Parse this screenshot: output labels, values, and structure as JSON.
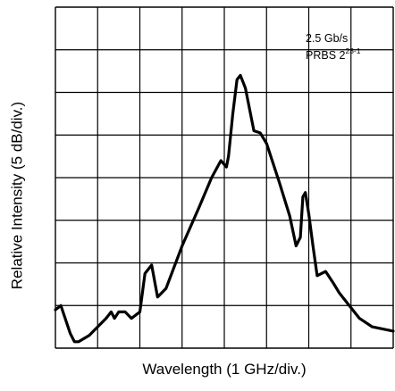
{
  "chart_data": {
    "type": "line",
    "title": "",
    "xlabel": "Wavelength (1 GHz/div.)",
    "ylabel": "Relative Intensity (5 dB/div.)",
    "xlim": [
      0,
      8
    ],
    "ylim": [
      0,
      8
    ],
    "grid": true,
    "annotation": {
      "line1": "2.5 Gb/s",
      "line2_base": "PRBS 2",
      "line2_exp": "23-1"
    },
    "series": [
      {
        "x": [
          0.0,
          0.13,
          0.35,
          0.45,
          0.55,
          0.8,
          1.0,
          1.2,
          1.32,
          1.4,
          1.5,
          1.65,
          1.8,
          2.0,
          2.12,
          2.28,
          2.42,
          2.62,
          3.0,
          3.4,
          3.7,
          3.92,
          4.05,
          4.1,
          4.2,
          4.3,
          4.38,
          4.5,
          4.7,
          4.85,
          5.0,
          5.3,
          5.55,
          5.7,
          5.8,
          5.86,
          5.92,
          6.0,
          6.1,
          6.2,
          6.4,
          6.6,
          6.72,
          6.8,
          7.2,
          7.5,
          8.0
        ],
        "y": [
          0.9,
          1.0,
          0.35,
          0.15,
          0.15,
          0.3,
          0.5,
          0.7,
          0.85,
          0.7,
          0.85,
          0.85,
          0.7,
          0.85,
          1.75,
          1.95,
          1.2,
          1.4,
          2.4,
          3.3,
          4.0,
          4.4,
          4.25,
          4.5,
          5.5,
          6.3,
          6.4,
          6.1,
          5.1,
          5.05,
          4.8,
          3.9,
          3.1,
          2.4,
          2.6,
          3.55,
          3.65,
          3.15,
          2.4,
          1.7,
          1.8,
          1.5,
          1.3,
          1.2,
          0.7,
          0.5,
          0.4
        ]
      }
    ]
  }
}
